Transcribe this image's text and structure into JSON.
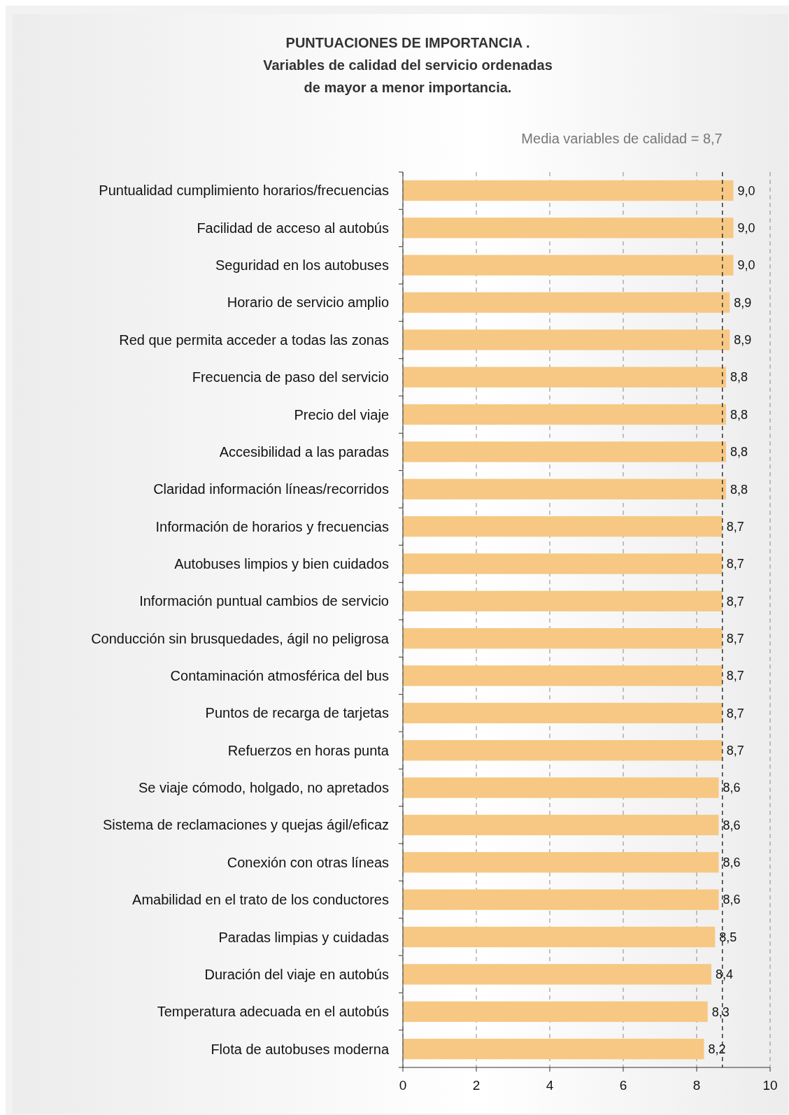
{
  "chart_data": {
    "type": "bar",
    "orientation": "horizontal",
    "title": "PUNTUACIONES DE IMPORTANCIA .\nVariables de calidad del servicio ordenadas\nde mayor a menor importancia.",
    "categories": [
      "Puntualidad cumplimiento horarios/frecuencias",
      "Facilidad de acceso al autobús",
      "Seguridad en los autobuses",
      "Horario de servicio amplio",
      "Red que permita acceder a todas las zonas",
      "Frecuencia de paso del servicio",
      "Precio del viaje",
      "Accesibilidad a las paradas",
      "Claridad información líneas/recorridos",
      "Información de horarios y frecuencias",
      "Autobuses limpios y bien cuidados",
      "Información puntual cambios de servicio",
      "Conducción sin brusquedades, ágil no peligrosa",
      "Contaminación atmosférica del bus",
      "Puntos de recarga de tarjetas",
      "Refuerzos en horas punta",
      "Se viaje cómodo, holgado, no apretados",
      "Sistema de reclamaciones y quejas ágil/eficaz",
      "Conexión con otras líneas",
      "Amabilidad en el trato de los conductores",
      "Paradas limpias y cuidadas",
      "Duración del viaje en autobús",
      "Temperatura adecuada en el autobús",
      "Flota de autobuses moderna"
    ],
    "values": [
      9.0,
      9.0,
      9.0,
      8.9,
      8.9,
      8.8,
      8.8,
      8.8,
      8.8,
      8.7,
      8.7,
      8.7,
      8.7,
      8.7,
      8.7,
      8.7,
      8.6,
      8.6,
      8.6,
      8.6,
      8.5,
      8.4,
      8.3,
      8.2
    ],
    "value_labels": [
      "9,0",
      "9,0",
      "9,0",
      "8,9",
      "8,9",
      "8,8",
      "8,8",
      "8,8",
      "8,8",
      "8,7",
      "8,7",
      "8,7",
      "8,7",
      "8,7",
      "8,7",
      "8,7",
      "8,6",
      "8,6",
      "8,6",
      "8,6",
      "8,5",
      "8,4",
      "8,3",
      "8,2"
    ],
    "color": "#f7c883",
    "xlim": [
      0,
      10
    ],
    "xticks": [
      0,
      2,
      4,
      6,
      8,
      10
    ],
    "grid": "x",
    "ref_lines": [
      {
        "axis": "x",
        "value": 8.7,
        "label": "Media variables de calidad = 8,7",
        "line_style": "dashed",
        "color": "#333333"
      }
    ]
  }
}
